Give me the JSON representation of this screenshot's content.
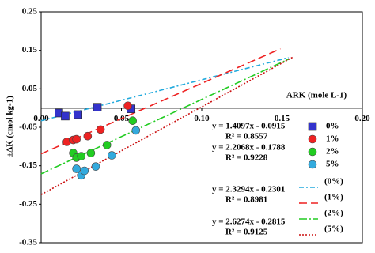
{
  "chart_data": {
    "type": "scatter",
    "x_label": "ARK (mole L-1)",
    "y_label": "±ΔK (cmol kg-1)",
    "xlim": [
      0,
      0.2
    ],
    "xticks": [
      {
        "value": 0,
        "label": "0.00"
      },
      0.05,
      {
        "value": 0.1,
        "label": "0.10"
      },
      0.15,
      {
        "value": 0.2,
        "label": "0.20"
      }
    ],
    "ylim": [
      -0.35,
      0.25
    ],
    "yticks": [
      -0.35,
      -0.25,
      -0.15,
      -0.05,
      0.05,
      0.15,
      0.25
    ],
    "series": [
      {
        "name": "0%",
        "color": "#3333cc",
        "marker": "square",
        "x": [
          0.011,
          0.015,
          0.023,
          0.035,
          0.056
        ],
        "y": [
          -0.013,
          -0.021,
          -0.017,
          0.002,
          -0.002
        ]
      },
      {
        "name": "1%",
        "color": "#ee2222",
        "marker": "circle",
        "x": [
          0.016,
          0.02,
          0.022,
          0.029,
          0.037,
          0.054
        ],
        "y": [
          -0.088,
          -0.083,
          -0.081,
          -0.073,
          -0.056,
          0.006
        ]
      },
      {
        "name": "2%",
        "color": "#22cc22",
        "marker": "circle",
        "x": [
          0.02,
          0.022,
          0.025,
          0.031,
          0.041,
          0.057
        ],
        "y": [
          -0.117,
          -0.129,
          -0.125,
          -0.117,
          -0.096,
          -0.033
        ]
      },
      {
        "name": "5%",
        "color": "#33aadd",
        "marker": "circle",
        "x": [
          0.022,
          0.025,
          0.027,
          0.034,
          0.044,
          0.059
        ],
        "y": [
          -0.158,
          -0.175,
          -0.163,
          -0.152,
          -0.123,
          -0.058
        ]
      }
    ],
    "trendlines": [
      {
        "name": "(0%)",
        "color": "#22aadd",
        "dash": "6 3 2 3",
        "x": [
          0,
          0.154
        ],
        "y": [
          -0.033,
          0.131
        ]
      },
      {
        "name": "(1%)",
        "color": "#ee2222",
        "dash": "10 5",
        "x": [
          0,
          0.149
        ],
        "y": [
          -0.119,
          0.154
        ]
      },
      {
        "name": "(2%)",
        "color": "#22cc22",
        "dash": "10 3 2 3",
        "x": [
          0,
          0.154
        ],
        "y": [
          -0.171,
          0.127
        ]
      },
      {
        "name": "(5%)",
        "color": "#cc1111",
        "dash": "2 2",
        "x": [
          0,
          0.157
        ],
        "y": [
          -0.225,
          0.133
        ]
      }
    ],
    "equations": [
      {
        "equation": "y = 1.4097x - 0.0915",
        "r2": "R² = 0.8557"
      },
      {
        "equation": "y = 2.2068x - 0.1788",
        "r2": "R² = 0.9228"
      },
      {
        "equation": "y = 2.3294x - 0.2301",
        "r2": "R² = 0.8981"
      },
      {
        "equation": "y = 2.6274x - 0.2815",
        "r2": "R² = 0.9125"
      }
    ]
  }
}
